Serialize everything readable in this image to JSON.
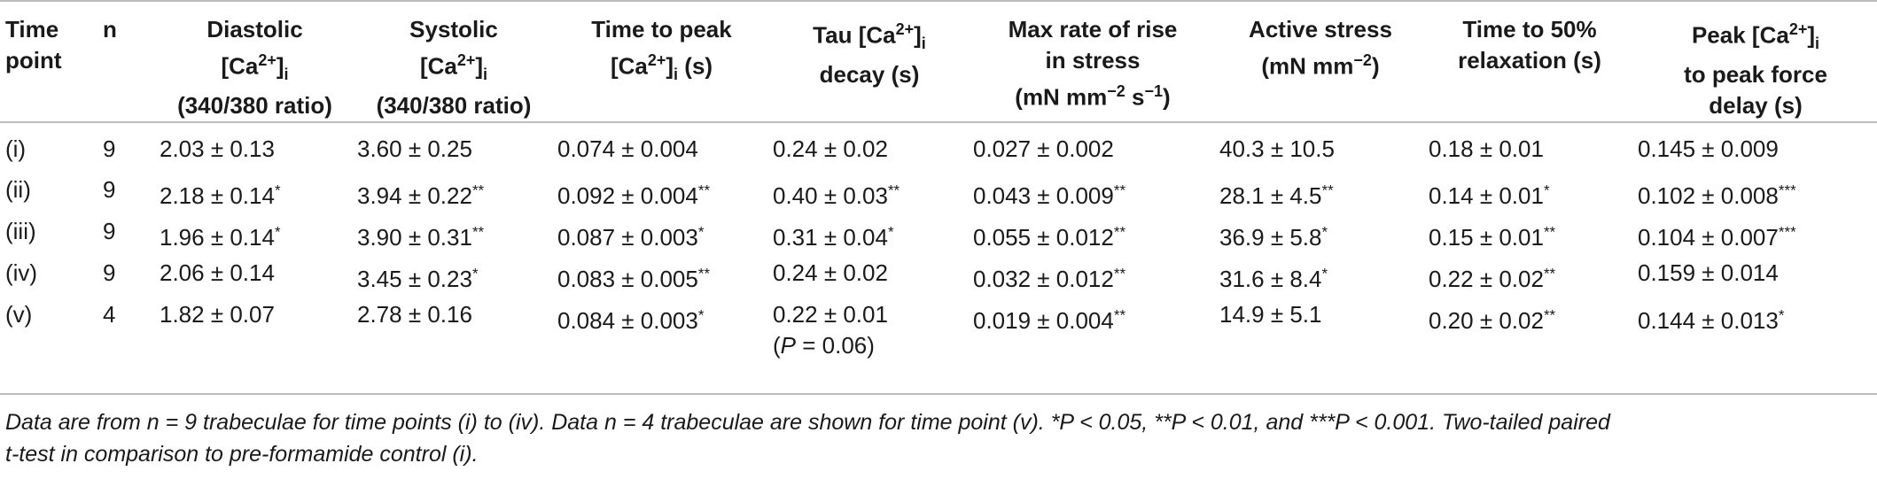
{
  "table": {
    "headers": [
      {
        "key": "time_point",
        "lines": [
          "Time",
          "point"
        ]
      },
      {
        "key": "n",
        "lines": [
          "n"
        ]
      },
      {
        "key": "diastolic",
        "lines": [
          "Diastolic",
          "[Ca2+]i",
          "(340/380 ratio)"
        ]
      },
      {
        "key": "systolic",
        "lines": [
          "Systolic",
          "[Ca2+]i",
          "(340/380 ratio)"
        ]
      },
      {
        "key": "time_to_peak",
        "lines": [
          "Time to peak",
          "[Ca2+]i (s)"
        ]
      },
      {
        "key": "tau",
        "lines": [
          "Tau [Ca2+]i",
          "decay (s)"
        ]
      },
      {
        "key": "max_rate",
        "lines": [
          "Max rate of rise",
          "in stress",
          "(mN mm−2 s−1)"
        ]
      },
      {
        "key": "active_stress",
        "lines": [
          "Active stress",
          "(mN mm−2)"
        ]
      },
      {
        "key": "t50",
        "lines": [
          "Time to 50%",
          "relaxation (s)"
        ]
      },
      {
        "key": "delay",
        "lines": [
          "Peak [Ca2+]i",
          "to peak force",
          "delay (s)"
        ]
      }
    ],
    "rows": [
      [
        "(i)",
        "9",
        "2.03 ± 0.13",
        "3.60 ± 0.25",
        "0.074 ± 0.004",
        "0.24 ± 0.02",
        "0.027 ± 0.002",
        "40.3 ± 10.5",
        "0.18 ± 0.01",
        "0.145 ± 0.009"
      ],
      [
        "(ii)",
        "9",
        "2.18 ± 0.14*",
        "3.94 ± 0.22**",
        "0.092 ± 0.004**",
        "0.40 ± 0.03**",
        "0.043 ± 0.009**",
        "28.1 ± 4.5**",
        "0.14 ± 0.01*",
        "0.102 ± 0.008***"
      ],
      [
        "(iii)",
        "9",
        "1.96 ± 0.14*",
        "3.90 ± 0.31**",
        "0.087 ± 0.003*",
        "0.31 ± 0.04*",
        "0.055 ± 0.012**",
        "36.9 ± 5.8*",
        "0.15 ± 0.01**",
        "0.104 ± 0.007***"
      ],
      [
        "(iv)",
        "9",
        "2.06 ± 0.14",
        "3.45 ± 0.23*",
        "0.083 ± 0.005**",
        "0.24 ± 0.02",
        "0.032 ± 0.012**",
        "31.6 ± 8.4*",
        "0.22 ± 0.02**",
        "0.159 ± 0.014"
      ],
      [
        "(v)",
        "4",
        "1.82 ± 0.07",
        "2.78 ± 0.16",
        "0.084 ± 0.003*",
        "0.22 ± 0.01",
        "0.019 ± 0.004**",
        "14.9 ± 5.1",
        "0.20 ± 0.02**",
        "0.144 ± 0.013*"
      ]
    ],
    "tau_note_v": "(P = 0.06)"
  },
  "footnote": {
    "line1": "Data are from n = 9 trabeculae for time points (i) to (iv). Data n = 4 trabeculae are shown for time point (v). *P < 0.05, **P < 0.01, and ***P < 0.001. Two-tailed paired",
    "line2": "t-test in comparison to pre-formamide control (i)."
  }
}
